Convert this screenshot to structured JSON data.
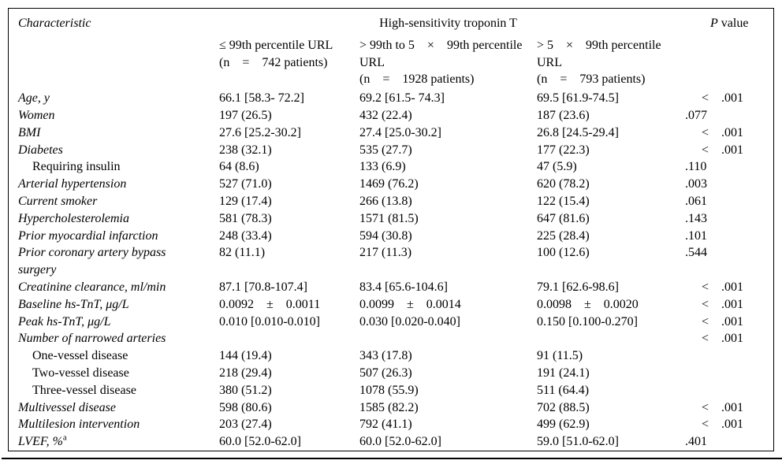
{
  "table": {
    "header": {
      "characteristic": "Characteristic",
      "group": "High-sensitivity troponin T",
      "p_italic": "P",
      "p_rest": " value"
    },
    "subheaders": [
      "≤ 99th percentile URL\n(n    =    742 patients)",
      "> 99th to 5    ×    99th percentile\nURL\n(n    =    1928 patients)",
      "> 5    ×    99th percentile\nURL\n(n    =    793 patients)"
    ],
    "rows": [
      {
        "label": "Age, y",
        "italic": true,
        "indent": false,
        "cells": [
          "66.1 [58.3- 72.2]",
          "69.2 [61.5- 74.3]",
          "69.5 [61.9-74.5]"
        ],
        "p": "< .001"
      },
      {
        "label": "Women",
        "italic": true,
        "indent": false,
        "cells": [
          "197 (26.5)",
          "432 (22.4)",
          "187 (23.6)"
        ],
        "p": ".077"
      },
      {
        "label": "BMI",
        "italic": true,
        "indent": false,
        "cells": [
          "27.6 [25.2-30.2]",
          "27.4 [25.0-30.2]",
          "26.8 [24.5-29.4]"
        ],
        "p": "< .001"
      },
      {
        "label": "Diabetes",
        "italic": true,
        "indent": false,
        "cells": [
          "238 (32.1)",
          "535 (27.7)",
          "177 (22.3)"
        ],
        "p": "< .001"
      },
      {
        "label": "Requiring insulin",
        "italic": false,
        "indent": true,
        "cells": [
          "64 (8.6)",
          "133 (6.9)",
          "47 (5.9)"
        ],
        "p": ".110"
      },
      {
        "label": "Arterial hypertension",
        "italic": true,
        "indent": false,
        "cells": [
          "527 (71.0)",
          "1469 (76.2)",
          "620 (78.2)"
        ],
        "p": ".003"
      },
      {
        "label": "Current smoker",
        "italic": true,
        "indent": false,
        "cells": [
          "129 (17.4)",
          "266 (13.8)",
          "122 (15.4)"
        ],
        "p": ".061"
      },
      {
        "label": "Hypercholesterolemia",
        "italic": true,
        "indent": false,
        "cells": [
          "581 (78.3)",
          "1571 (81.5)",
          "647 (81.6)"
        ],
        "p": ".143"
      },
      {
        "label": "Prior myocardial infarction",
        "italic": true,
        "indent": false,
        "cells": [
          "248 (33.4)",
          "594 (30.8)",
          "225 (28.4)"
        ],
        "p": ".101"
      },
      {
        "label": "Prior coronary artery bypass\nsurgery",
        "italic": true,
        "indent": false,
        "cells": [
          "82 (11.1)",
          "217 (11.3)",
          "100 (12.6)"
        ],
        "p": ".544"
      },
      {
        "label": "Creatinine clearance, ml/min",
        "italic": true,
        "indent": false,
        "cells": [
          "87.1 [70.8-107.4]",
          "83.4 [65.6-104.6]",
          "79.1 [62.6-98.6]"
        ],
        "p": "< .001"
      },
      {
        "label": "Baseline hs-TnT, μg/L",
        "italic": true,
        "indent": false,
        "cells": [
          "0.0092    ±    0.0011",
          "0.0099    ±    0.0014",
          "0.0098    ±    0.0020"
        ],
        "p": "< .001"
      },
      {
        "label": "Peak hs-TnT, μg/L",
        "italic": true,
        "indent": false,
        "cells": [
          "0.010 [0.010-0.010]",
          "0.030 [0.020-0.040]",
          "0.150 [0.100-0.270]"
        ],
        "p": "< .001"
      },
      {
        "label": "Number of narrowed arteries",
        "italic": true,
        "indent": false,
        "cells": [
          "",
          "",
          ""
        ],
        "p": "< .001"
      },
      {
        "label": "One-vessel disease",
        "italic": false,
        "indent": true,
        "cells": [
          "144 (19.4)",
          "343 (17.8)",
          "91 (11.5)"
        ],
        "p": ""
      },
      {
        "label": "Two-vessel disease",
        "italic": false,
        "indent": true,
        "cells": [
          "218 (29.4)",
          "507 (26.3)",
          "191 (24.1)"
        ],
        "p": ""
      },
      {
        "label": "Three-vessel disease",
        "italic": false,
        "indent": true,
        "cells": [
          "380 (51.2)",
          "1078 (55.9)",
          "511 (64.4)"
        ],
        "p": ""
      },
      {
        "label": "Multivessel disease",
        "italic": true,
        "indent": false,
        "cells": [
          "598 (80.6)",
          "1585 (82.2)",
          "702 (88.5)"
        ],
        "p": "< .001"
      },
      {
        "label": "Multilesion intervention",
        "italic": true,
        "indent": false,
        "cells": [
          "203 (27.4)",
          "792 (41.1)",
          "499 (62.9)"
        ],
        "p": "< .001"
      },
      {
        "label": "LVEF, %",
        "sup": "a",
        "italic": true,
        "indent": false,
        "cells": [
          "60.0 [52.0-62.0]",
          "60.0 [52.0-62.0]",
          "59.0 [51.0-62.0]"
        ],
        "p": ".401"
      }
    ]
  }
}
